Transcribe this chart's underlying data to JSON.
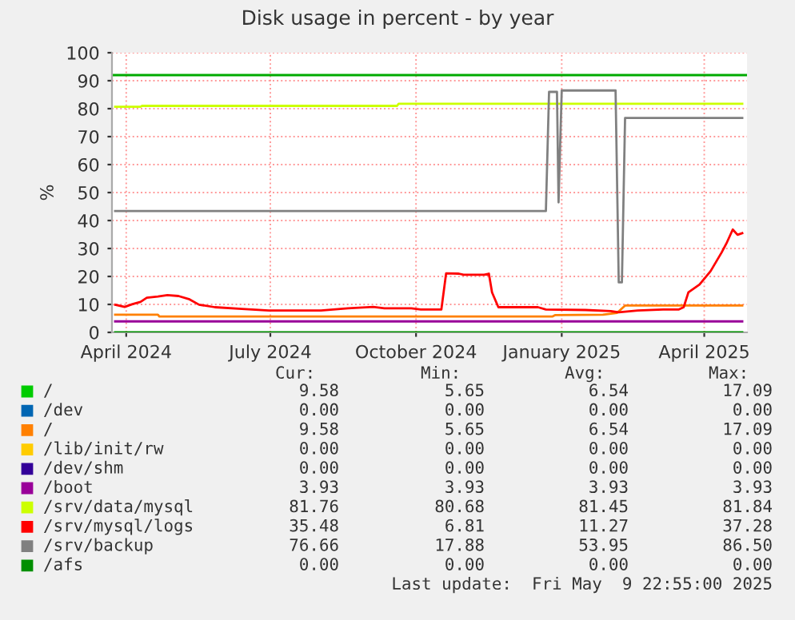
{
  "chart_data": {
    "type": "line",
    "title": "Disk usage in percent - by year",
    "ylabel": "%",
    "xlim": [
      "2024-03-23",
      "2025-04-28"
    ],
    "xticks": [
      {
        "value": "2024-04-01",
        "label": "April 2024"
      },
      {
        "value": "2024-07-01",
        "label": "July 2024"
      },
      {
        "value": "2024-10-01",
        "label": "October 2024"
      },
      {
        "value": "2025-01-01",
        "label": "January 2025"
      },
      {
        "value": "2025-04-01",
        "label": "April 2025"
      }
    ],
    "ylim": [
      0,
      100
    ],
    "yticks": [
      0,
      10,
      20,
      30,
      40,
      50,
      60,
      70,
      80,
      90,
      100
    ],
    "grid": true,
    "legend": "bottom",
    "ref_lines": [
      {
        "axis": "y",
        "value": 92,
        "color": "#00aa00"
      }
    ],
    "series": [
      {
        "name": "/",
        "color": "#00cc00"
      },
      {
        "name": "/dev",
        "color": "#0066b3"
      },
      {
        "name": "/",
        "color": "#ff8000",
        "x": [
          "2024-03-25",
          "2024-04-21",
          "2024-04-22",
          "2024-12-26",
          "2024-12-28",
          "2025-01-27",
          "2025-02-05",
          "2025-02-10",
          "2025-04-25"
        ],
        "values": [
          6.3,
          6.3,
          5.65,
          5.65,
          6.2,
          6.3,
          7.0,
          9.58,
          9.58
        ]
      },
      {
        "name": "/lib/init/rw",
        "color": "#ffcc00"
      },
      {
        "name": "/dev/shm",
        "color": "#330099"
      },
      {
        "name": "/boot",
        "color": "#990099",
        "x": [
          "2024-03-25",
          "2025-04-25"
        ],
        "values": [
          3.93,
          3.93
        ]
      },
      {
        "name": "/srv/data/mysql",
        "color": "#ccff00",
        "x": [
          "2024-03-25",
          "2024-04-10",
          "2024-04-11",
          "2024-09-19",
          "2024-09-20",
          "2025-04-25"
        ],
        "values": [
          80.68,
          80.68,
          81.0,
          81.0,
          81.76,
          81.76
        ]
      },
      {
        "name": "/srv/mysql/logs",
        "color": "#ff0000",
        "x": [
          "2024-03-25",
          "2024-03-31",
          "2024-04-05",
          "2024-04-10",
          "2024-04-14",
          "2024-04-21",
          "2024-04-27",
          "2024-05-04",
          "2024-05-11",
          "2024-05-17",
          "2024-05-27",
          "2024-06-13",
          "2024-06-30",
          "2024-07-20",
          "2024-08-02",
          "2024-08-19",
          "2024-09-04",
          "2024-09-11",
          "2024-09-28",
          "2024-10-04",
          "2024-10-17",
          "2024-10-20",
          "2024-10-28",
          "2024-10-31",
          "2024-11-13",
          "2024-11-16",
          "2024-11-18",
          "2024-11-22",
          "2024-12-17",
          "2024-12-22",
          "2025-01-16",
          "2025-02-01",
          "2025-02-06",
          "2025-02-18",
          "2025-03-06",
          "2025-03-16",
          "2025-03-19",
          "2025-03-22",
          "2025-03-29",
          "2025-04-05",
          "2025-04-12",
          "2025-04-15",
          "2025-04-19",
          "2025-04-22",
          "2025-04-25"
        ],
        "values": [
          9.9,
          9.1,
          10.1,
          10.9,
          12.4,
          12.8,
          13.3,
          13.0,
          11.8,
          9.9,
          9.0,
          8.4,
          7.8,
          7.8,
          7.8,
          8.6,
          9.1,
          8.6,
          8.6,
          8.2,
          8.2,
          21.1,
          21.0,
          20.6,
          20.6,
          21.0,
          14.3,
          9.0,
          9.0,
          8.2,
          8.0,
          7.6,
          7.2,
          7.8,
          8.2,
          8.2,
          9.0,
          14.3,
          17.1,
          21.9,
          28.6,
          31.8,
          36.8,
          34.9,
          35.48
        ]
      },
      {
        "name": "/srv/backup",
        "color": "#808080",
        "x": [
          "2024-03-25",
          "2024-12-22",
          "2024-12-24",
          "2024-12-29",
          "2024-12-30",
          "2025-01-01",
          "2025-02-04",
          "2025-02-06",
          "2025-02-08",
          "2025-02-10",
          "2025-04-25"
        ],
        "values": [
          43.4,
          43.4,
          86.0,
          86.0,
          46.5,
          86.5,
          86.5,
          17.88,
          17.88,
          76.66,
          76.66
        ]
      },
      {
        "name": "/afs",
        "color": "#008f00",
        "x": [
          "2024-03-25",
          "2025-04-25"
        ],
        "values": [
          0,
          0
        ]
      }
    ],
    "annotations": [
      "Cur:",
      "Min:",
      "Avg:",
      "Max:",
      "9.58",
      "5.65",
      "6.54",
      "17.09",
      "0.00",
      "0.00",
      "0.00",
      "0.00",
      "9.58",
      "5.65",
      "6.54",
      "17.09",
      "0.00",
      "0.00",
      "0.00",
      "0.00",
      "0.00",
      "0.00",
      "0.00",
      "0.00",
      "3.93",
      "3.93",
      "3.93",
      "3.93",
      "81.76",
      "80.68",
      "81.45",
      "81.84",
      "35.48",
      "6.81",
      "11.27",
      "37.28",
      "76.66",
      "17.88",
      "53.95",
      "86.50",
      "0.00",
      "0.00",
      "0.00",
      "0.00",
      "Last update:  Fri May  9 22:55:00 2025"
    ]
  }
}
